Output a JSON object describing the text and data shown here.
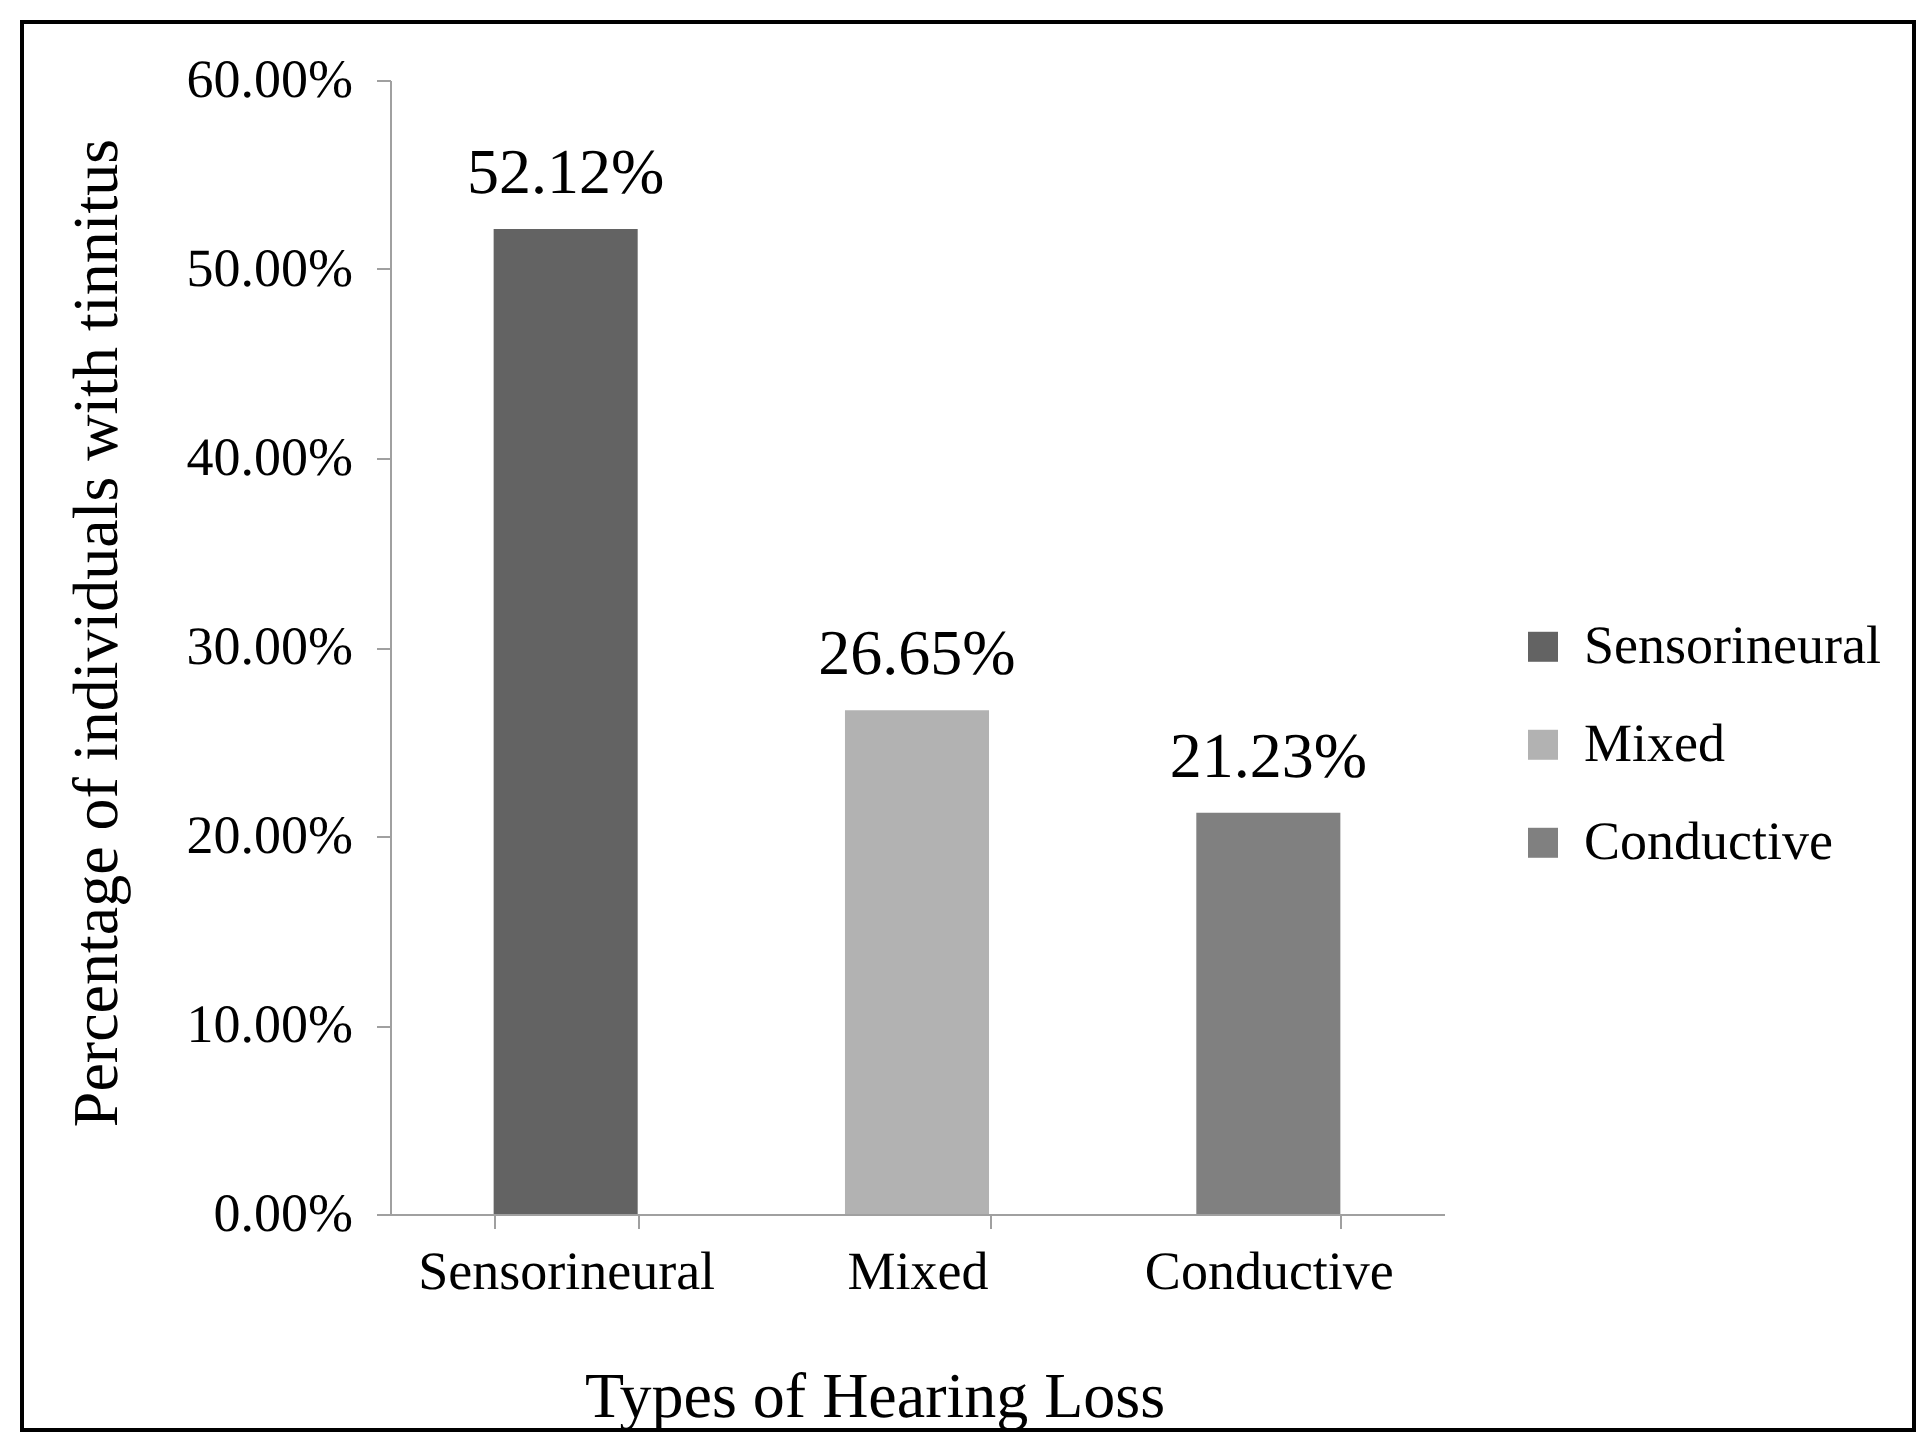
{
  "chart_data": {
    "type": "bar",
    "xlabel": "Types of Hearing Loss",
    "ylabel": "Percentage of individuals with tinnitus",
    "categories": [
      "Sensorineural",
      "Mixed",
      "Conductive"
    ],
    "stacked": true,
    "series": [
      {
        "name": "Sensorineural",
        "color": "#636363",
        "values": [
          52.12,
          null,
          null
        ],
        "value_labels": [
          "52.12%",
          null,
          null
        ]
      },
      {
        "name": "Mixed",
        "color": "#b2b2b2",
        "values": [
          null,
          26.65,
          null
        ],
        "value_labels": [
          null,
          "26.65%",
          null
        ]
      },
      {
        "name": "Conductive",
        "color": "#808080",
        "values": [
          null,
          null,
          21.23
        ],
        "value_labels": [
          null,
          null,
          "21.23%"
        ]
      }
    ],
    "ylim": [
      0,
      60
    ],
    "yticks": [
      {
        "value": 0,
        "label": "0.00%"
      },
      {
        "value": 10,
        "label": "10.00%"
      },
      {
        "value": 20,
        "label": "20.00%"
      },
      {
        "value": 30,
        "label": "30.00%"
      },
      {
        "value": 40,
        "label": "40.00%"
      },
      {
        "value": 50,
        "label": "50.00%"
      },
      {
        "value": 60,
        "label": "60.00%"
      }
    ],
    "legend": "right"
  }
}
